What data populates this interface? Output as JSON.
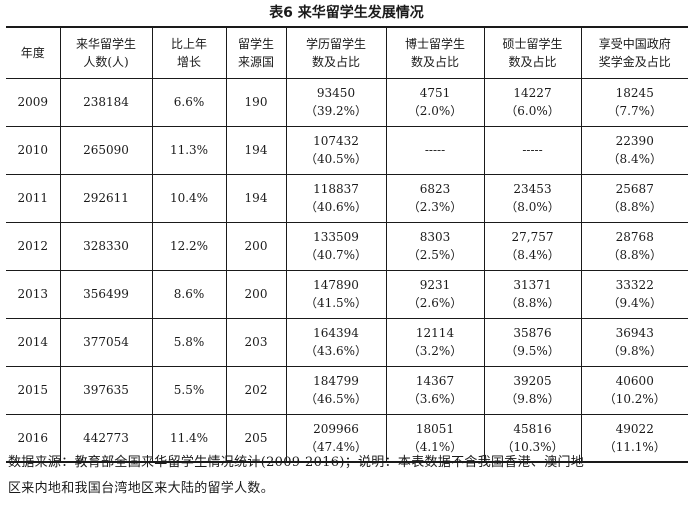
{
  "title": "表6   来华留学生发展情况",
  "headers": [
    [
      "年度"
    ],
    [
      "来华留学生",
      "人数(人)"
    ],
    [
      "比上年",
      "增长"
    ],
    [
      "留学生",
      "来源国"
    ],
    [
      "学历留学生",
      "数及占比"
    ],
    [
      "博士留学生",
      "数及占比"
    ],
    [
      "硕士留学生",
      "数及占比"
    ],
    [
      "享受中国政府",
      "奖学金及占比"
    ]
  ],
  "rows": [
    {
      "year": "2009",
      "total": "238184",
      "growth": "6.6%",
      "countries": "190",
      "degree": [
        "93450",
        "（39.2%）"
      ],
      "phd": [
        "4751",
        "（2.0%）"
      ],
      "master": [
        "14227",
        "（6.0%）"
      ],
      "scholarship": [
        "18245",
        "（7.7%）"
      ]
    },
    {
      "year": "2010",
      "total": "265090",
      "growth": "11.3%",
      "countries": "194",
      "degree": [
        "107432",
        "（40.5%）"
      ],
      "phd": [
        "-----",
        ""
      ],
      "master": [
        "-----",
        ""
      ],
      "scholarship": [
        "22390",
        "（8.4%）"
      ]
    },
    {
      "year": "2011",
      "total": "292611",
      "growth": "10.4%",
      "countries": "194",
      "degree": [
        "118837",
        "（40.6%）"
      ],
      "phd": [
        "6823",
        "（2.3%）"
      ],
      "master": [
        "23453",
        "（8.0%）"
      ],
      "scholarship": [
        "25687",
        "（8.8%）"
      ]
    },
    {
      "year": "2012",
      "total": "328330",
      "growth": "12.2%",
      "countries": "200",
      "degree": [
        "133509",
        "（40.7%）"
      ],
      "phd": [
        "8303",
        "（2.5%）"
      ],
      "master": [
        "27,757",
        "（8.4%）"
      ],
      "scholarship": [
        "28768",
        "（8.8%）"
      ]
    },
    {
      "year": "2013",
      "total": "356499",
      "growth": "8.6%",
      "countries": "200",
      "degree": [
        "147890",
        "（41.5%）"
      ],
      "phd": [
        "9231",
        "（2.6%）"
      ],
      "master": [
        "31371",
        "（8.8%）"
      ],
      "scholarship": [
        "33322",
        "（9.4%）"
      ]
    },
    {
      "year": "2014",
      "total": "377054",
      "growth": "5.8%",
      "countries": "203",
      "degree": [
        "164394",
        "（43.6%）"
      ],
      "phd": [
        "12114",
        "（3.2%）"
      ],
      "master": [
        "35876",
        "（9.5%）"
      ],
      "scholarship": [
        "36943",
        "（9.8%）"
      ]
    },
    {
      "year": "2015",
      "total": "397635",
      "growth": "5.5%",
      "countries": "202",
      "degree": [
        "184799",
        "（46.5%）"
      ],
      "phd": [
        "14367",
        "（3.6%）"
      ],
      "master": [
        "39205",
        "（9.8%）"
      ],
      "scholarship": [
        "40600",
        "（10.2%）"
      ]
    },
    {
      "year": "2016",
      "total": "442773",
      "growth": "11.4%",
      "countries": "205",
      "degree": [
        "209966",
        "（47.4%）"
      ],
      "phd": [
        "18051",
        "（4.1%）"
      ],
      "master": [
        "45816",
        "（10.3%）"
      ],
      "scholarship": [
        "49022",
        "（11.1%）"
      ]
    }
  ],
  "footer": {
    "line1": "数据来源：教育部全国来华留学生情况统计(2009-2016)；说明：本表数据不含我国香港、澳门地",
    "line2": "区来内地和我国台湾地区来大陆的留学人数。"
  }
}
